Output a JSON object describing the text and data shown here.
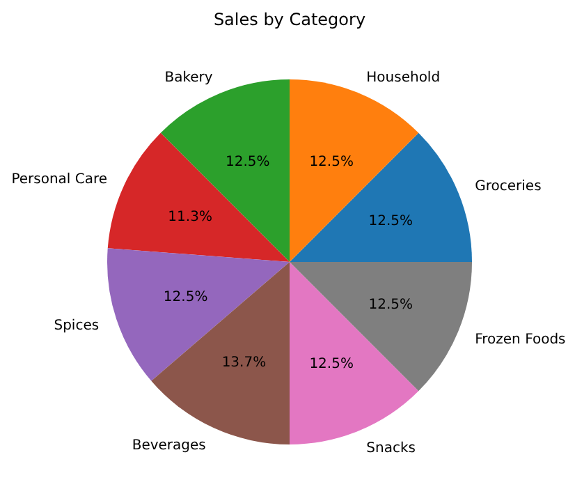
{
  "chart_data": {
    "type": "pie",
    "title": "Sales by Category",
    "categories": [
      "Groceries",
      "Household",
      "Bakery",
      "Personal Care",
      "Spices",
      "Beverages",
      "Snacks",
      "Frozen Foods"
    ],
    "values": [
      12.5,
      12.5,
      12.5,
      11.3,
      12.5,
      13.7,
      12.5,
      12.5
    ],
    "colors": [
      "#1f77b4",
      "#ff7f0e",
      "#2ca02c",
      "#d62728",
      "#9467bd",
      "#8c564b",
      "#e377c2",
      "#7f7f7f"
    ],
    "value_labels": [
      "12.5%",
      "12.5%",
      "12.5%",
      "11.3%",
      "12.5%",
      "13.7%",
      "12.5%",
      "12.5%"
    ]
  }
}
